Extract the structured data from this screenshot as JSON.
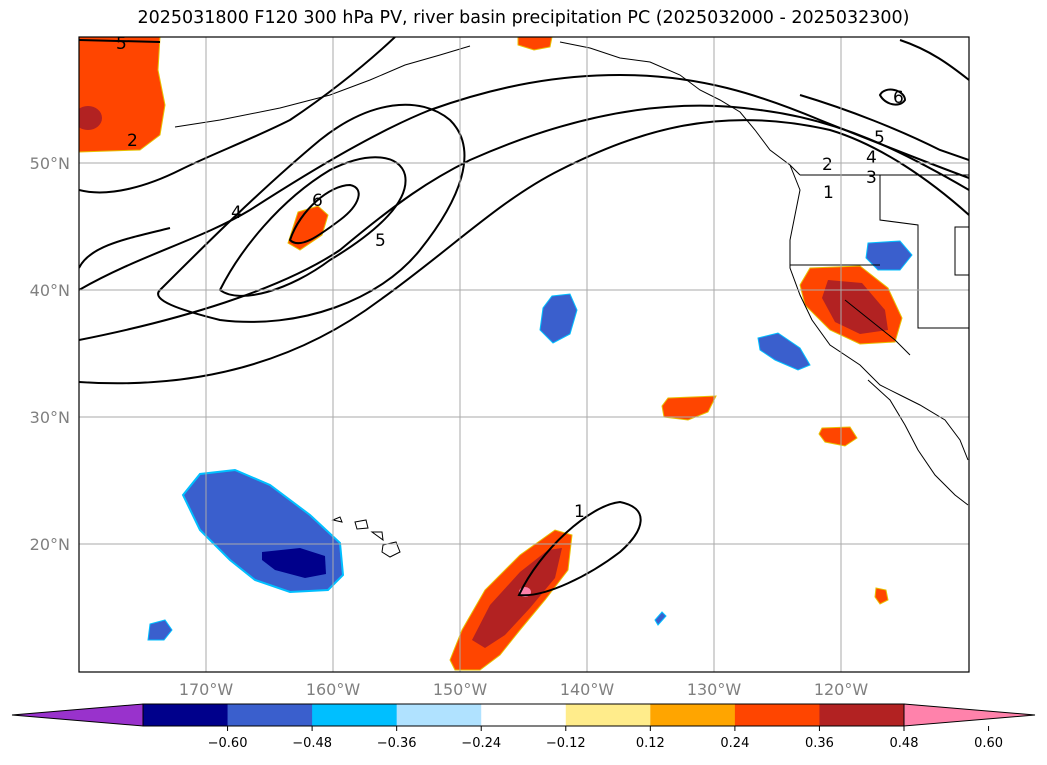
{
  "title": "2025031800 F120 300 hPa PV, river basin precipitation PC (2025032000 - 2025032300)",
  "lat_labels": [
    "50°N",
    "40°N",
    "30°N",
    "20°N"
  ],
  "lon_labels": [
    "170°W",
    "160°W",
    "150°W",
    "140°W",
    "130°W",
    "120°W"
  ],
  "contour_labels": [
    "5",
    "2",
    "4",
    "6",
    "5",
    "1",
    "2",
    "4",
    "3",
    "5",
    "6",
    "1"
  ],
  "colorbar": {
    "ticks": [
      "−0.60",
      "−0.48",
      "−0.36",
      "−0.24",
      "−0.12",
      "0.12",
      "0.24",
      "0.36",
      "0.48",
      "0.60"
    ],
    "colors": [
      "#9932cc",
      "#00008b",
      "#3a5fcd",
      "#00bfff",
      "#b0e2ff",
      "#ffffff",
      "#ffec8b",
      "#ffa500",
      "#ff4500",
      "#b22222",
      "#ff82ab"
    ]
  },
  "map_colors": {
    "positive_strong": "#b22222",
    "positive": "#ff4500",
    "negative": "#3a5fcd",
    "negative_strong": "#00008b",
    "positive_extreme": "#ff82ab"
  }
}
